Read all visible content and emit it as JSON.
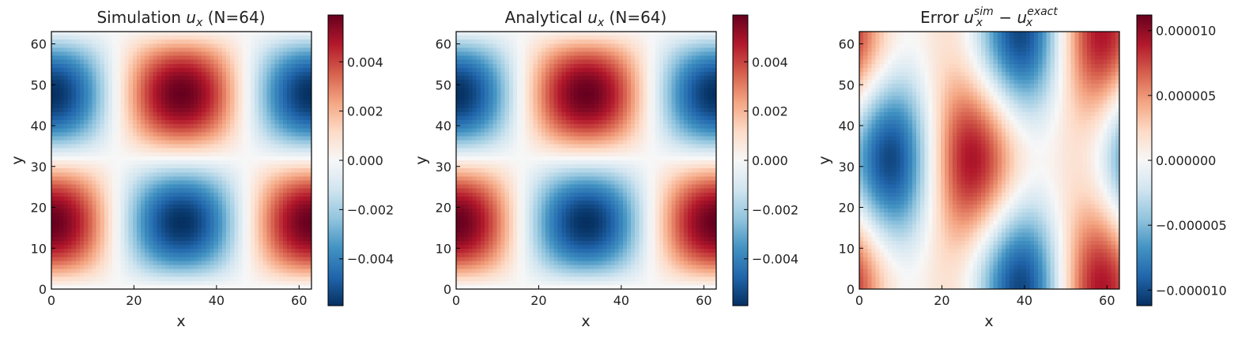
{
  "chart_data": [
    {
      "type": "heatmap",
      "title_prefix": "Simulation ",
      "title_var": "u",
      "title_sub": "x",
      "title_suffix": " (N=64)",
      "xlabel": "x",
      "ylabel": "y",
      "grid_n": 64,
      "xlim": [
        0,
        63
      ],
      "ylim": [
        0,
        63
      ],
      "xticks": [
        0,
        20,
        40,
        60
      ],
      "yticks": [
        0,
        10,
        20,
        30,
        40,
        50,
        60
      ],
      "field": "ux",
      "amplitude": 0.0059,
      "colormap": "RdBu_r",
      "colorbar_ticks": [
        0.004,
        0.002,
        0.0,
        -0.002,
        -0.004
      ],
      "colorbar_labels": [
        "0.004",
        "0.002",
        "0.000",
        "−0.002",
        "−0.004"
      ],
      "clim": [
        -0.0059,
        0.0059
      ]
    },
    {
      "type": "heatmap",
      "title_prefix": "Analytical ",
      "title_var": "u",
      "title_sub": "x",
      "title_suffix": " (N=64)",
      "xlabel": "x",
      "ylabel": "y",
      "grid_n": 64,
      "xlim": [
        0,
        63
      ],
      "ylim": [
        0,
        63
      ],
      "xticks": [
        0,
        20,
        40,
        60
      ],
      "yticks": [
        0,
        10,
        20,
        30,
        40,
        50,
        60
      ],
      "field": "ux",
      "amplitude": 0.0059,
      "colormap": "RdBu_r",
      "colorbar_ticks": [
        0.004,
        0.002,
        0.0,
        -0.002,
        -0.004
      ],
      "colorbar_labels": [
        "0.004",
        "0.002",
        "0.000",
        "−0.002",
        "−0.004"
      ],
      "clim": [
        -0.0059,
        0.0059
      ]
    },
    {
      "type": "heatmap",
      "title_prefix": "Error ",
      "title_var": "u",
      "title_sub": "x",
      "title_sup": "sim",
      "title_minus": " − ",
      "title_var2": "u",
      "title_sub2": "x",
      "title_sup2": "exact",
      "xlabel": "x",
      "ylabel": "y",
      "grid_n": 64,
      "xlim": [
        0,
        63
      ],
      "ylim": [
        0,
        63
      ],
      "xticks": [
        0,
        20,
        40,
        60
      ],
      "yticks": [
        0,
        10,
        20,
        30,
        40,
        50,
        60
      ],
      "field": "error",
      "amplitude": 1.12e-05,
      "colormap": "RdBu_r",
      "colorbar_ticks": [
        1e-05,
        5e-06,
        0.0,
        -5e-06,
        -1e-05
      ],
      "colorbar_labels": [
        "0.000010",
        "0.000005",
        "0.000000",
        "−0.000005",
        "−0.000010"
      ],
      "clim": [
        -1.12e-05,
        1.12e-05
      ]
    }
  ]
}
